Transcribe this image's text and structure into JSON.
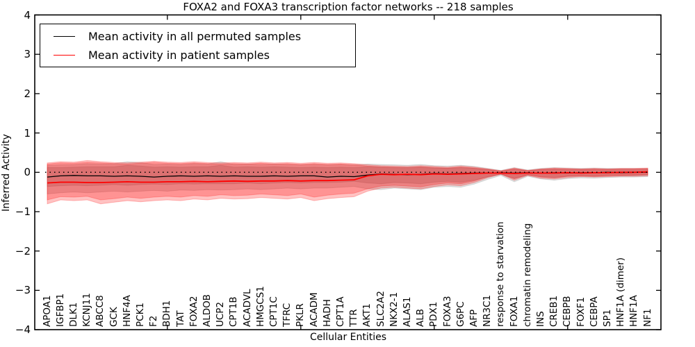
{
  "title": "FOXA2 and FOXA3 transcription factor networks -- 218 samples",
  "axes": {
    "x_label": "Cellular Entities",
    "y_label": "Inferred Activity",
    "y_ticks": [
      "4",
      "3",
      "2",
      "1",
      "0",
      "−1",
      "−2",
      "−3",
      "−4"
    ],
    "y_min": -4,
    "y_max": 4
  },
  "legend": {
    "entries": [
      {
        "label": "Mean activity in all permuted samples",
        "color": "#000000"
      },
      {
        "label": "Mean activity in patient samples",
        "color": "#ff0000"
      }
    ]
  },
  "colors": {
    "patient": "#ff0000",
    "permuted": "#000000",
    "patient_band_alpha": 0.24,
    "permuted_band_alpha": 0.12
  },
  "chart_data": {
    "type": "line",
    "title": "FOXA2 and FOXA3 transcription factor networks -- 218 samples",
    "xlabel": "Cellular Entities",
    "ylabel": "Inferred Activity",
    "ylim": [
      -4,
      4
    ],
    "grid": false,
    "legend_position": "upper left",
    "zero_line": 0,
    "x_major_ticks": [
      10,
      20,
      30,
      40
    ],
    "categories": [
      "APOA1",
      "IGFBP1",
      "DLK1",
      "KCNJ11",
      "ABCC8",
      "GCK",
      "HNF4A",
      "PCK1",
      "F2",
      "BDH1",
      "TAT",
      "FOXA2",
      "ALDOB",
      "UCP2",
      "CPT1B",
      "ACADVL",
      "HMGCS1",
      "CPT1C",
      "TFRC",
      "PKLR",
      "ACADM",
      "HADH",
      "CPT1A",
      "TTR",
      "AKT1",
      "SLC2A2",
      "NKX2-1",
      "ALAS1",
      "ALB",
      "PDX1",
      "FOXA3",
      "G6PC",
      "AFP",
      "NR3C1",
      "response to starvation",
      "FOXA1",
      "chromatin remodeling",
      "INS",
      "CREB1",
      "CEBPB",
      "FOXF1",
      "CEBPA",
      "SP1",
      "HNF1A (dimer)",
      "HNF1A",
      "NF1"
    ],
    "series": [
      {
        "name": "Mean activity in all permuted samples",
        "color": "#000000",
        "values": [
          -0.12,
          -0.09,
          -0.08,
          -0.09,
          -0.09,
          -0.1,
          -0.09,
          -0.1,
          -0.12,
          -0.1,
          -0.09,
          -0.1,
          -0.09,
          -0.1,
          -0.09,
          -0.1,
          -0.1,
          -0.09,
          -0.1,
          -0.09,
          -0.09,
          -0.12,
          -0.1,
          -0.11,
          -0.07,
          -0.04,
          -0.05,
          -0.06,
          -0.05,
          -0.03,
          -0.04,
          -0.03,
          -0.02,
          -0.02,
          -0.01,
          -0.02,
          -0.01,
          -0.02,
          -0.01,
          -0.02,
          -0.01,
          -0.01,
          0.0,
          -0.01,
          0.0,
          0.0
        ]
      },
      {
        "name": "Mean activity in patient samples",
        "color": "#ff0000",
        "values": [
          -0.27,
          -0.25,
          -0.25,
          -0.26,
          -0.26,
          -0.25,
          -0.24,
          -0.25,
          -0.25,
          -0.24,
          -0.24,
          -0.23,
          -0.24,
          -0.23,
          -0.22,
          -0.23,
          -0.22,
          -0.22,
          -0.21,
          -0.22,
          -0.21,
          -0.21,
          -0.2,
          -0.19,
          -0.09,
          -0.05,
          -0.06,
          -0.05,
          -0.06,
          -0.04,
          -0.05,
          -0.04,
          -0.03,
          -0.02,
          -0.02,
          -0.03,
          -0.02,
          -0.02,
          -0.02,
          -0.01,
          -0.02,
          -0.01,
          -0.01,
          0.0,
          0.0,
          0.01
        ]
      }
    ],
    "bands": [
      {
        "name": "permuted-outer-band",
        "color": "#000000",
        "alpha": 0.12,
        "low": [
          -0.55,
          -0.52,
          -0.5,
          -0.52,
          -0.5,
          -0.48,
          -0.5,
          -0.48,
          -0.46,
          -0.48,
          -0.45,
          -0.46,
          -0.44,
          -0.45,
          -0.44,
          -0.42,
          -0.44,
          -0.42,
          -0.4,
          -0.42,
          -0.4,
          -0.4,
          -0.38,
          -0.36,
          -0.42,
          -0.44,
          -0.4,
          -0.42,
          -0.44,
          -0.38,
          -0.36,
          -0.38,
          -0.3,
          -0.18,
          -0.08,
          -0.24,
          -0.1,
          -0.17,
          -0.2,
          -0.16,
          -0.14,
          -0.15,
          -0.13,
          -0.12,
          -0.12,
          -0.11
        ],
        "high": [
          0.18,
          0.19,
          0.2,
          0.22,
          0.21,
          0.22,
          0.27,
          0.25,
          0.2,
          0.21,
          0.2,
          0.22,
          0.21,
          0.27,
          0.2,
          0.21,
          0.2,
          0.21,
          0.2,
          0.19,
          0.2,
          0.19,
          0.2,
          0.19,
          0.21,
          0.2,
          0.19,
          0.18,
          0.2,
          0.17,
          0.16,
          0.18,
          0.15,
          0.1,
          0.05,
          0.12,
          0.06,
          0.1,
          0.12,
          0.11,
          0.1,
          0.11,
          0.1,
          0.1,
          0.1,
          0.1
        ]
      },
      {
        "name": "permuted-inner-band",
        "color": "#000000",
        "alpha": 0.12,
        "low": [
          -0.36,
          -0.34,
          -0.33,
          -0.34,
          -0.33,
          -0.31,
          -0.33,
          -0.31,
          -0.3,
          -0.31,
          -0.29,
          -0.3,
          -0.29,
          -0.29,
          -0.29,
          -0.27,
          -0.29,
          -0.27,
          -0.26,
          -0.27,
          -0.26,
          -0.26,
          -0.25,
          -0.23,
          -0.27,
          -0.29,
          -0.26,
          -0.27,
          -0.29,
          -0.25,
          -0.23,
          -0.25,
          -0.2,
          -0.12,
          -0.05,
          -0.16,
          -0.07,
          -0.11,
          -0.13,
          -0.1,
          -0.09,
          -0.1,
          -0.08,
          -0.08,
          -0.08,
          -0.07
        ],
        "high": [
          0.12,
          0.12,
          0.13,
          0.14,
          0.14,
          0.14,
          0.18,
          0.16,
          0.13,
          0.14,
          0.13,
          0.14,
          0.14,
          0.18,
          0.13,
          0.14,
          0.13,
          0.14,
          0.13,
          0.12,
          0.13,
          0.12,
          0.13,
          0.12,
          0.14,
          0.13,
          0.12,
          0.12,
          0.13,
          0.11,
          0.1,
          0.12,
          0.1,
          0.07,
          0.03,
          0.08,
          0.04,
          0.07,
          0.08,
          0.07,
          0.07,
          0.07,
          0.07,
          0.07,
          0.07,
          0.07
        ]
      },
      {
        "name": "patient-outer-band",
        "color": "#ff0000",
        "alpha": 0.24,
        "low": [
          -0.8,
          -0.7,
          -0.72,
          -0.7,
          -0.8,
          -0.76,
          -0.72,
          -0.75,
          -0.72,
          -0.7,
          -0.72,
          -0.68,
          -0.7,
          -0.66,
          -0.68,
          -0.67,
          -0.64,
          -0.66,
          -0.68,
          -0.64,
          -0.72,
          -0.67,
          -0.64,
          -0.62,
          -0.48,
          -0.4,
          -0.38,
          -0.4,
          -0.42,
          -0.36,
          -0.32,
          -0.34,
          -0.26,
          -0.14,
          -0.05,
          -0.2,
          -0.08,
          -0.15,
          -0.17,
          -0.13,
          -0.11,
          -0.12,
          -0.11,
          -0.1,
          -0.1,
          -0.09
        ],
        "high": [
          0.24,
          0.27,
          0.26,
          0.3,
          0.27,
          0.25,
          0.24,
          0.26,
          0.28,
          0.26,
          0.25,
          0.27,
          0.25,
          0.24,
          0.25,
          0.24,
          0.26,
          0.24,
          0.25,
          0.23,
          0.25,
          0.23,
          0.24,
          0.22,
          0.19,
          0.17,
          0.16,
          0.15,
          0.17,
          0.15,
          0.13,
          0.16,
          0.13,
          0.09,
          0.04,
          0.11,
          0.05,
          0.09,
          0.11,
          0.1,
          0.09,
          0.1,
          0.09,
          0.1,
          0.1,
          0.11
        ]
      },
      {
        "name": "patient-inner-band",
        "color": "#ff0000",
        "alpha": 0.24,
        "low": [
          -0.7,
          -0.62,
          -0.63,
          -0.61,
          -0.7,
          -0.67,
          -0.63,
          -0.66,
          -0.63,
          -0.61,
          -0.63,
          -0.59,
          -0.61,
          -0.57,
          -0.59,
          -0.58,
          -0.55,
          -0.57,
          -0.59,
          -0.55,
          -0.63,
          -0.58,
          -0.55,
          -0.53,
          -0.42,
          -0.35,
          -0.33,
          -0.35,
          -0.37,
          -0.31,
          -0.27,
          -0.29,
          -0.22,
          -0.11,
          -0.04,
          -0.16,
          -0.06,
          -0.12,
          -0.14,
          -0.1,
          -0.09,
          -0.1,
          -0.09,
          -0.08,
          -0.07,
          -0.06
        ],
        "high": [
          0.21,
          0.24,
          0.23,
          0.26,
          0.24,
          0.22,
          0.21,
          0.23,
          0.25,
          0.23,
          0.22,
          0.24,
          0.22,
          0.21,
          0.22,
          0.21,
          0.23,
          0.21,
          0.22,
          0.2,
          0.22,
          0.2,
          0.21,
          0.19,
          0.16,
          0.14,
          0.13,
          0.12,
          0.14,
          0.12,
          0.11,
          0.13,
          0.11,
          0.07,
          0.03,
          0.09,
          0.04,
          0.07,
          0.09,
          0.08,
          0.07,
          0.08,
          0.07,
          0.08,
          0.08,
          0.09
        ]
      }
    ]
  }
}
